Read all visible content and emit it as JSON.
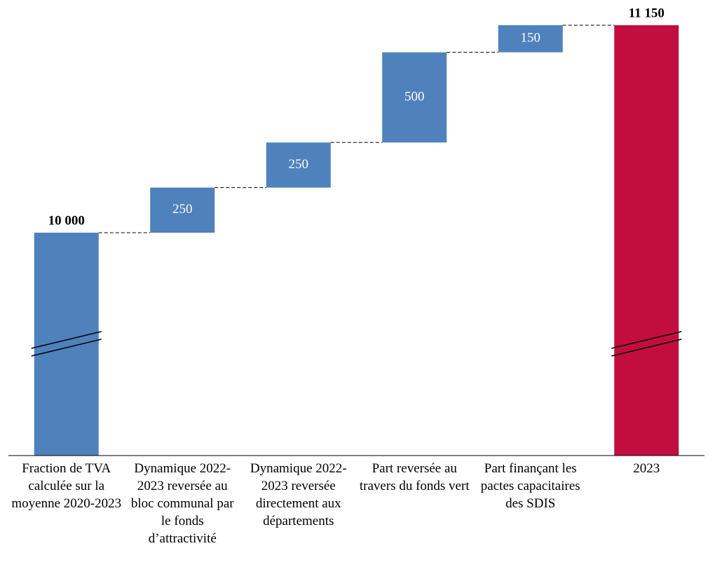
{
  "chart_data": {
    "type": "waterfall",
    "categories": [
      "Fraction de TVA calculée sur la moyenne 2020-2023",
      "Dynamique 2022-2023 reversée au bloc communal par le fonds d’attractivité",
      "Dynamique 2022-2023 reversée directement aux départements",
      "Part reversée au travers du fonds vert",
      "Part finançant les pactes capacitaires des SDIS",
      "2023"
    ],
    "values": [
      10000,
      250,
      250,
      500,
      150,
      11150
    ],
    "value_labels": [
      "10 000",
      "250",
      "250",
      "500",
      "150",
      "11 150"
    ],
    "colors": [
      "#4f81bd",
      "#4f81bd",
      "#4f81bd",
      "#4f81bd",
      "#4f81bd",
      "#c20e3f"
    ]
  }
}
